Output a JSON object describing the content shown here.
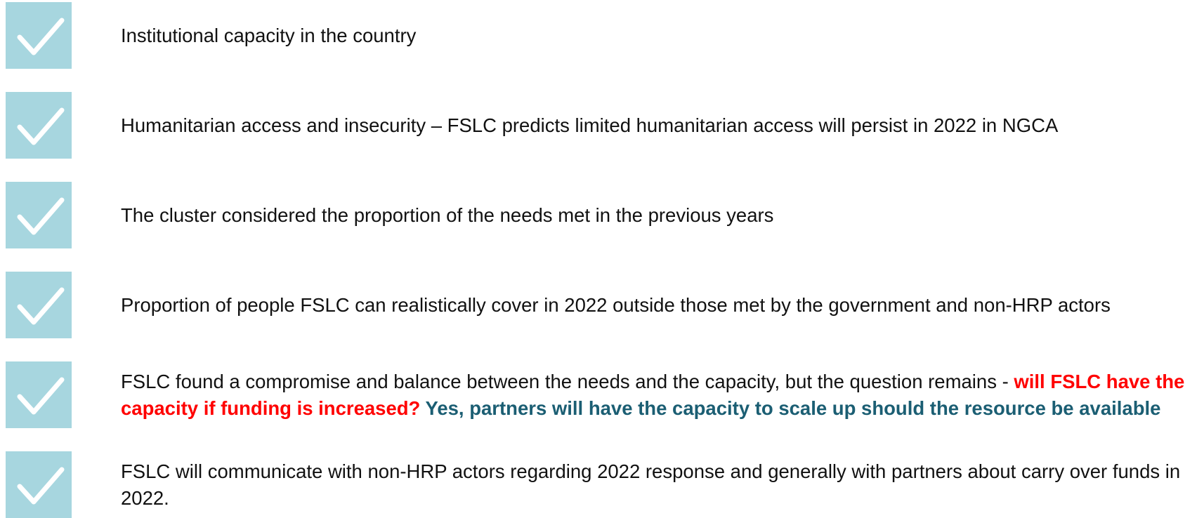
{
  "items": [
    [
      "Institutional capacity in the country"
    ],
    [
      "Humanitarian access and insecurity – FSLC predicts limited humanitarian access will persist in 2022 in NGCA"
    ],
    [
      "The cluster considered the proportion of the needs met in the previous years"
    ],
    [
      "Proportion of people FSLC can realistically cover in 2022 outside those met by the government and non-HRP actors"
    ],
    [
      "FSLC found a compromise and balance between the needs and the capacity, but the question remains - ",
      "will FSLC have the capacity if funding is increased?",
      " Yes, partners will have the capacity to scale up should the resource be available"
    ],
    [
      "FSLC will communicate with non-HRP actors regarding 2022 response and generally with partners about carry over funds in 2022."
    ]
  ]
}
